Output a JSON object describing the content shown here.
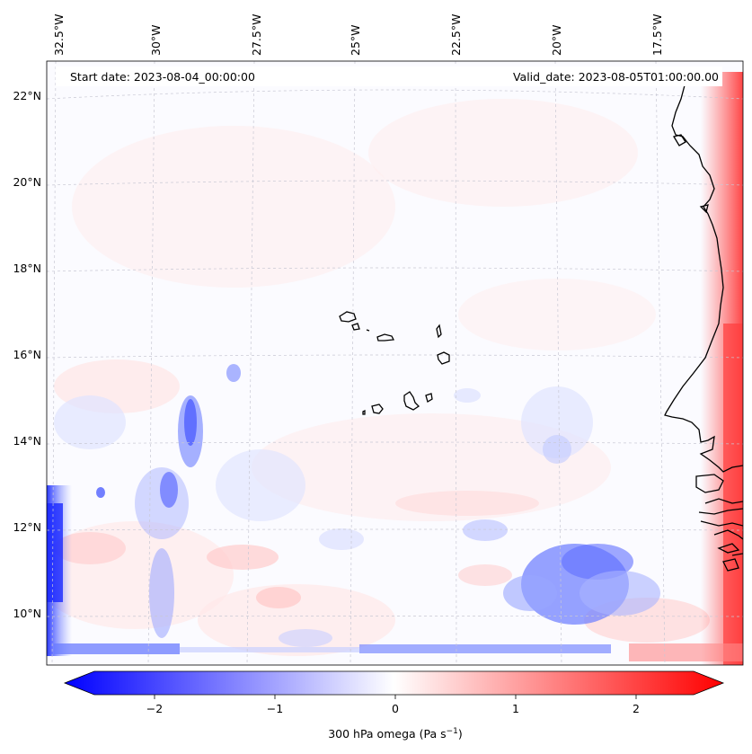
{
  "info": {
    "start_date": "Start date: 2023-08-04_00:00:00",
    "valid_date": "Valid_date: 2023-08-05T01:00:00.00"
  },
  "longitude_labels": [
    "32.5°W",
    "30°W",
    "27.5°W",
    "25°W",
    "22.5°W",
    "20°W",
    "17.5°W"
  ],
  "latitude_labels": [
    "22°N",
    "20°N",
    "18°N",
    "16°N",
    "14°N",
    "12°N",
    "10°N"
  ],
  "colorbar": {
    "ticks": [
      "−2",
      "−1",
      "0",
      "1",
      "2"
    ],
    "label": "300 hPa omega (Pa s",
    "label_sup": "−1",
    "label_tail": ")",
    "range": [
      -2.6,
      2.6
    ],
    "colors": {
      "negative": "#0000ff",
      "zero": "#ffffff",
      "positive": "#ff0000"
    }
  },
  "map": {
    "field": "300 hPa omega",
    "units": "Pa s−1",
    "features": [
      "Cape Verde islands",
      "West African coastline"
    ]
  }
}
